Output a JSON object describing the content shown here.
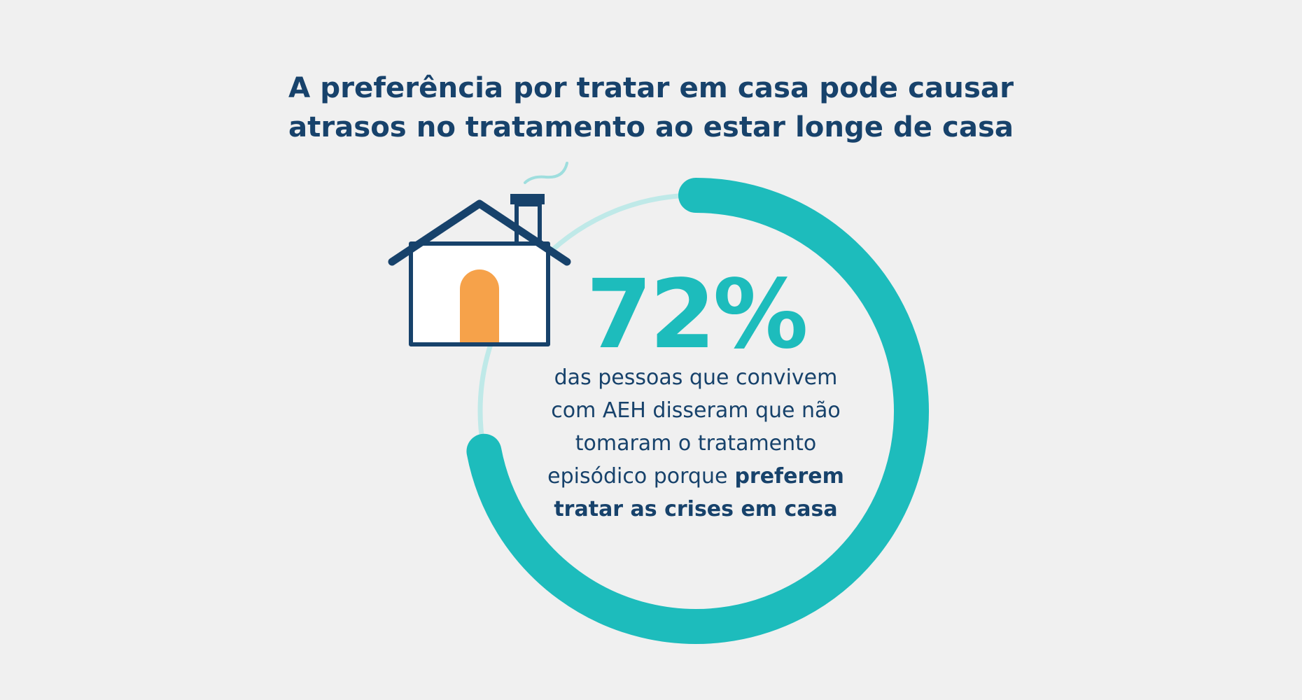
{
  "chart_data": {
    "type": "gauge",
    "title_lines": [
      "A preferência por tratar em casa pode causar",
      "atrasos no tratamento ao estar longe de casa"
    ],
    "value": 72,
    "value_label": "72%",
    "ylim": [
      0,
      100
    ],
    "color": "#1dbcbc",
    "track_color": "#bfe9e8",
    "description_lines": [
      [
        {
          "text": "das pessoas que convivem",
          "bold": false
        }
      ],
      [
        {
          "text": "com AEH disseram que não",
          "bold": false
        }
      ],
      [
        {
          "text": "tomaram o tratamento",
          "bold": false
        }
      ],
      [
        {
          "text": "episódico porque",
          "bold": false
        },
        {
          "text": "preferem",
          "bold": true
        }
      ],
      [
        {
          "text": "tratar as crises em casa",
          "bold": true
        }
      ]
    ]
  }
}
